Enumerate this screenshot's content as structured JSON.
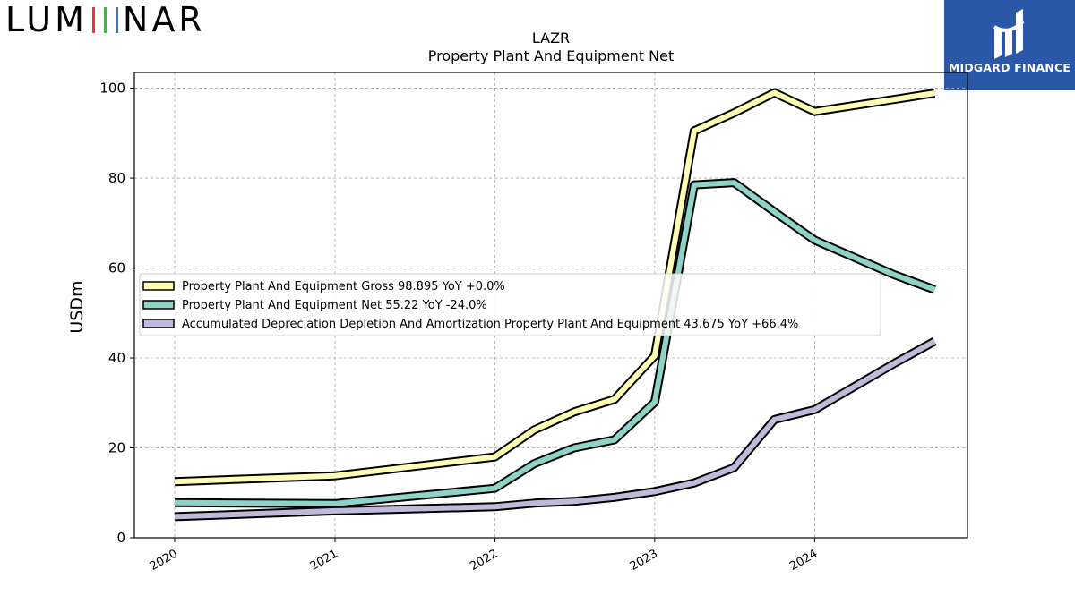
{
  "branding": {
    "logo_text": "LUMINAR",
    "logo_bar_colors": [
      "#e8383d",
      "#4caf50",
      "#3f6fb5"
    ],
    "badge_text": "MIDGARD FINANCE",
    "badge_color": "#2b57a8"
  },
  "chart_data": {
    "type": "line",
    "title": "LAZR",
    "subtitle": "Property Plant And Equipment Net",
    "ylabel": "USDm",
    "xlabel": "",
    "ylim": [
      0,
      103.5
    ],
    "xlim": [
      "2019-10-01",
      "2024-12-15"
    ],
    "grid": true,
    "legend_position": "center-left",
    "x_ticks": [
      "2020",
      "2021",
      "2022",
      "2023",
      "2024"
    ],
    "y_ticks": [
      0,
      20,
      40,
      60,
      80,
      100
    ],
    "series": [
      {
        "name": "Property Plant And Equipment Gross  98.895 YoY +0.0%",
        "color": "#ffffb3",
        "points": [
          [
            "2020-01-01",
            12.5
          ],
          [
            "2021-01-01",
            13.8
          ],
          [
            "2022-01-01",
            18.0
          ],
          [
            "2022-04-01",
            24.0
          ],
          [
            "2022-07-01",
            28.0
          ],
          [
            "2022-10-01",
            30.8
          ],
          [
            "2023-01-01",
            40.5
          ],
          [
            "2023-04-01",
            90.5
          ],
          [
            "2023-07-01",
            94.5
          ],
          [
            "2023-10-01",
            99.0
          ],
          [
            "2024-01-01",
            94.8
          ],
          [
            "2024-07-01",
            97.5
          ],
          [
            "2024-10-01",
            98.9
          ]
        ]
      },
      {
        "name": "Property Plant And Equipment Net  55.22 YoY -24.0%",
        "color": "#8dd3c7",
        "points": [
          [
            "2020-01-01",
            7.8
          ],
          [
            "2021-01-01",
            7.6
          ],
          [
            "2022-01-01",
            11.0
          ],
          [
            "2022-04-01",
            16.5
          ],
          [
            "2022-07-01",
            20.0
          ],
          [
            "2022-10-01",
            21.8
          ],
          [
            "2023-01-01",
            30.2
          ],
          [
            "2023-04-01",
            78.5
          ],
          [
            "2023-07-01",
            79.0
          ],
          [
            "2023-10-01",
            72.5
          ],
          [
            "2024-01-01",
            66.2
          ],
          [
            "2024-07-01",
            58.5
          ],
          [
            "2024-10-01",
            55.2
          ]
        ]
      },
      {
        "name": "Accumulated Depreciation Depletion And Amortization Property Plant And Equipment  43.675 YoY +66.4%",
        "color": "#bebada",
        "points": [
          [
            "2020-01-01",
            4.7
          ],
          [
            "2021-01-01",
            6.0
          ],
          [
            "2022-01-01",
            6.9
          ],
          [
            "2022-04-01",
            7.7
          ],
          [
            "2022-07-01",
            8.1
          ],
          [
            "2022-10-01",
            9.0
          ],
          [
            "2023-01-01",
            10.3
          ],
          [
            "2023-04-01",
            12.2
          ],
          [
            "2023-07-01",
            15.6
          ],
          [
            "2023-10-01",
            26.3
          ],
          [
            "2024-01-01",
            28.5
          ],
          [
            "2024-07-01",
            38.8
          ],
          [
            "2024-10-01",
            43.7
          ]
        ]
      }
    ]
  }
}
